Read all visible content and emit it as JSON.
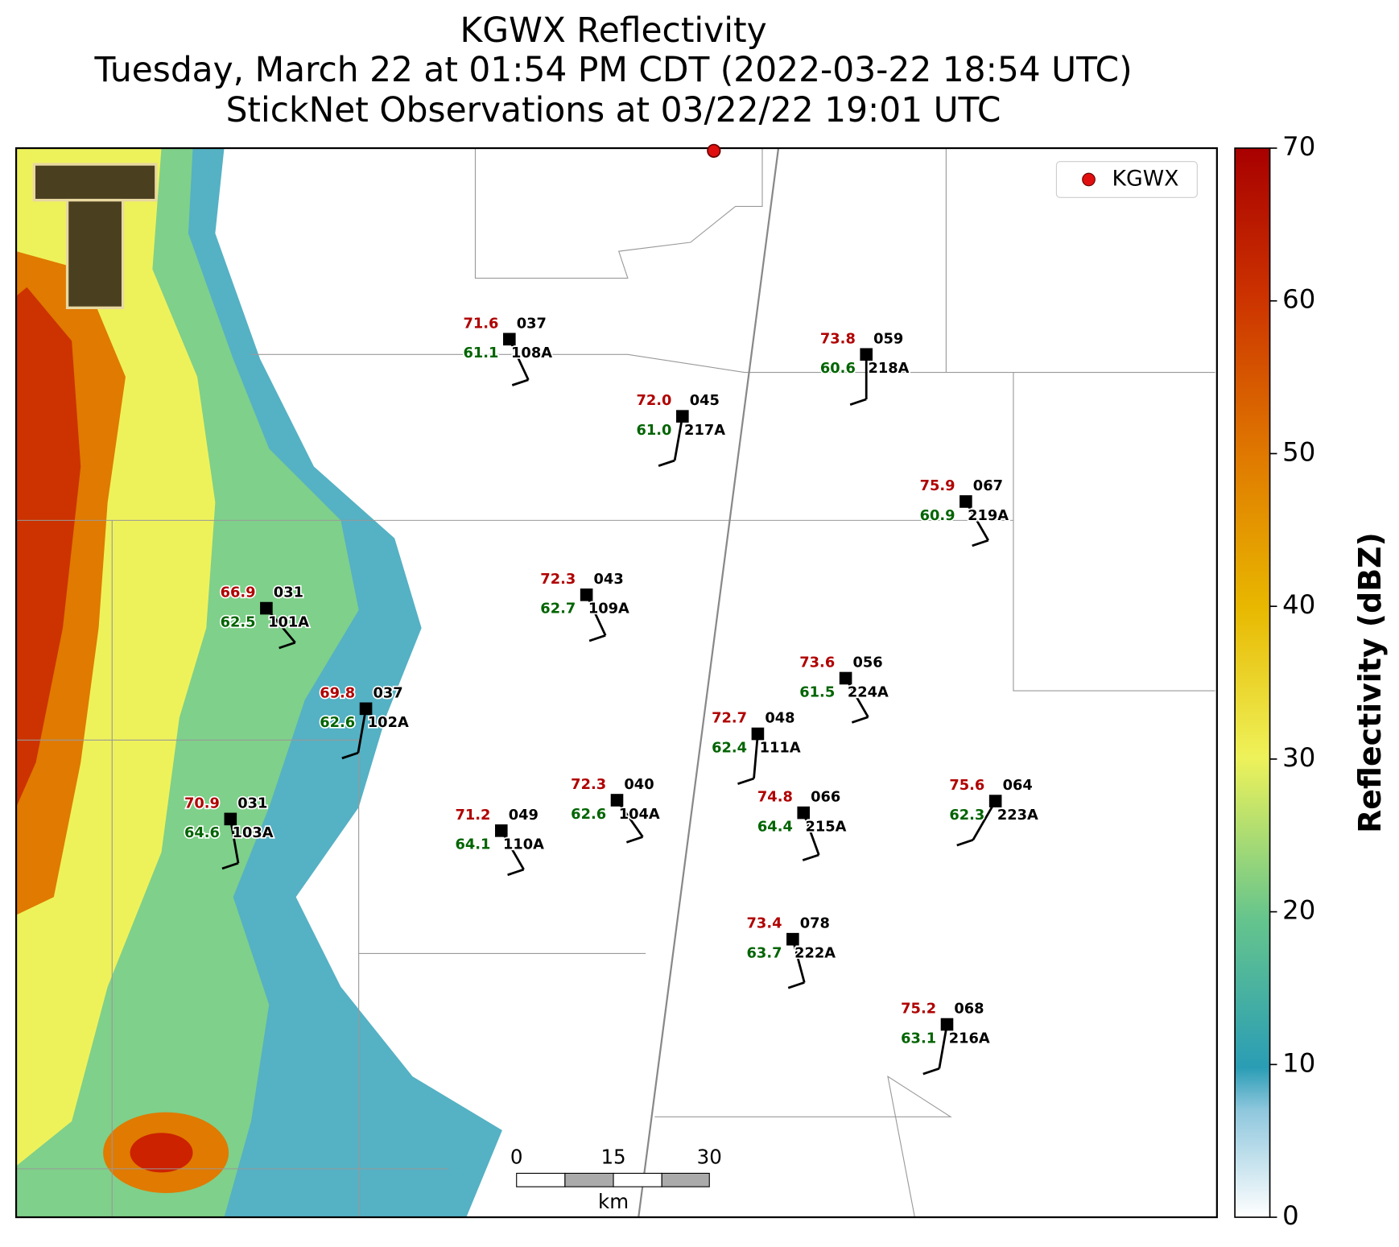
{
  "header": {
    "title": "KGWX Reflectivity",
    "subtitle": "Tuesday, March 22 at 01:54 PM CDT (2022-03-22 18:54 UTC)",
    "subtitle2": "StickNet Observations at 03/22/22 19:01 UTC"
  },
  "legend": {
    "label": "KGWX"
  },
  "colorbar": {
    "label": "Reflectivity (dBZ)",
    "lim": [
      0,
      70
    ],
    "ticks": [
      0,
      10,
      20,
      30,
      40,
      50,
      60,
      70
    ]
  },
  "scale_bar": {
    "ticks": [
      "0",
      "15",
      "30"
    ],
    "unit": "km"
  },
  "stations": [
    {
      "id": "101A",
      "temp": "66.9",
      "dew": "62.5",
      "code": "031"
    },
    {
      "id": "102A",
      "temp": "69.8",
      "dew": "62.6",
      "code": "037"
    },
    {
      "id": "103A",
      "temp": "70.9",
      "dew": "64.6",
      "code": "031"
    },
    {
      "id": "108A",
      "temp": "71.6",
      "dew": "61.1",
      "code": "037"
    },
    {
      "id": "109A",
      "temp": "72.3",
      "dew": "62.7",
      "code": "043"
    },
    {
      "id": "110A",
      "temp": "71.2",
      "dew": "64.1",
      "code": "049"
    },
    {
      "id": "104A",
      "temp": "72.3",
      "dew": "62.6",
      "code": "040"
    },
    {
      "id": "217A",
      "temp": "72.0",
      "dew": "61.0",
      "code": "045"
    },
    {
      "id": "218A",
      "temp": "73.8",
      "dew": "60.6",
      "code": "059"
    },
    {
      "id": "219A",
      "temp": "75.9",
      "dew": "60.9",
      "code": "067"
    },
    {
      "id": "224A",
      "temp": "73.6",
      "dew": "61.5",
      "code": "056"
    },
    {
      "id": "111A",
      "temp": "72.7",
      "dew": "62.4",
      "code": "048"
    },
    {
      "id": "215A",
      "temp": "74.8",
      "dew": "64.4",
      "code": "066"
    },
    {
      "id": "223A",
      "temp": "75.6",
      "dew": "62.3",
      "code": "064"
    },
    {
      "id": "222A",
      "temp": "73.4",
      "dew": "63.7",
      "code": "078"
    },
    {
      "id": "216A",
      "temp": "75.2",
      "dew": "63.1",
      "code": "068"
    }
  ]
}
